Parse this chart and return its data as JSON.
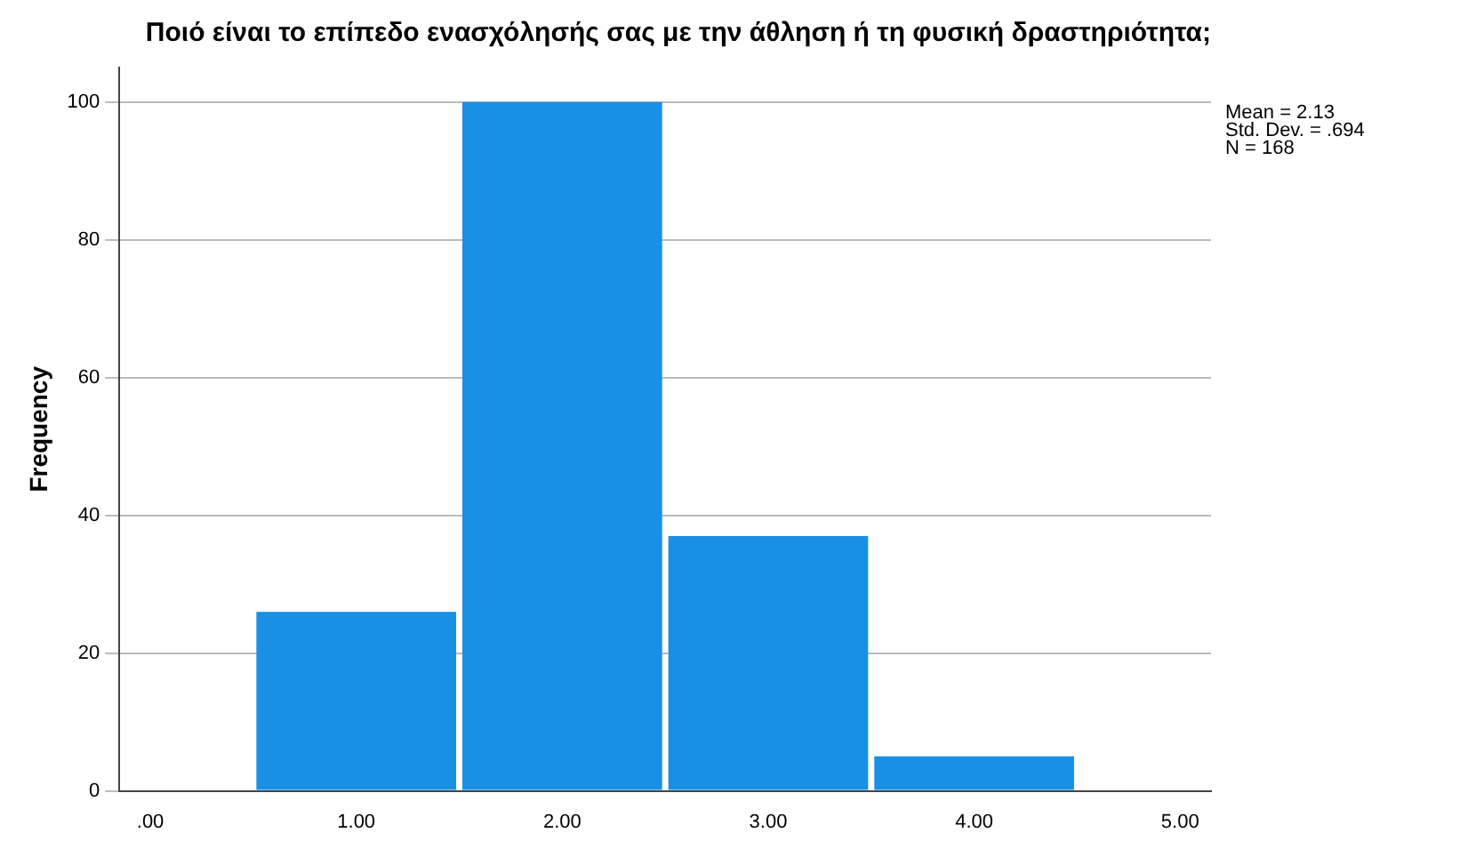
{
  "chart_data": {
    "type": "histogram",
    "title": "Ποιό είναι το επίπεδο ενασχόλησής σας με την άθληση ή τη φυσική δραστηριότητα;",
    "ylabel": "Frequency",
    "bins": [
      0.5,
      1.5,
      2.5,
      3.5,
      4.5
    ],
    "values": [
      26,
      100,
      37,
      5
    ],
    "color": "#1a8fe6",
    "xlim": [
      -0.15,
      5.15
    ],
    "xticks": [
      {
        "value": 0,
        "label": ".00"
      },
      {
        "value": 1,
        "label": "1.00"
      },
      {
        "value": 2,
        "label": "2.00"
      },
      {
        "value": 3,
        "label": "3.00"
      },
      {
        "value": 4,
        "label": "4.00"
      },
      {
        "value": 5,
        "label": "5.00"
      }
    ],
    "ylim": [
      0,
      105
    ],
    "yticks": [
      0,
      20,
      40,
      60,
      80,
      100
    ],
    "grid": "y",
    "annotations": [
      "Mean = 2.13",
      "Std. Dev. = .694",
      "N = 168"
    ]
  }
}
